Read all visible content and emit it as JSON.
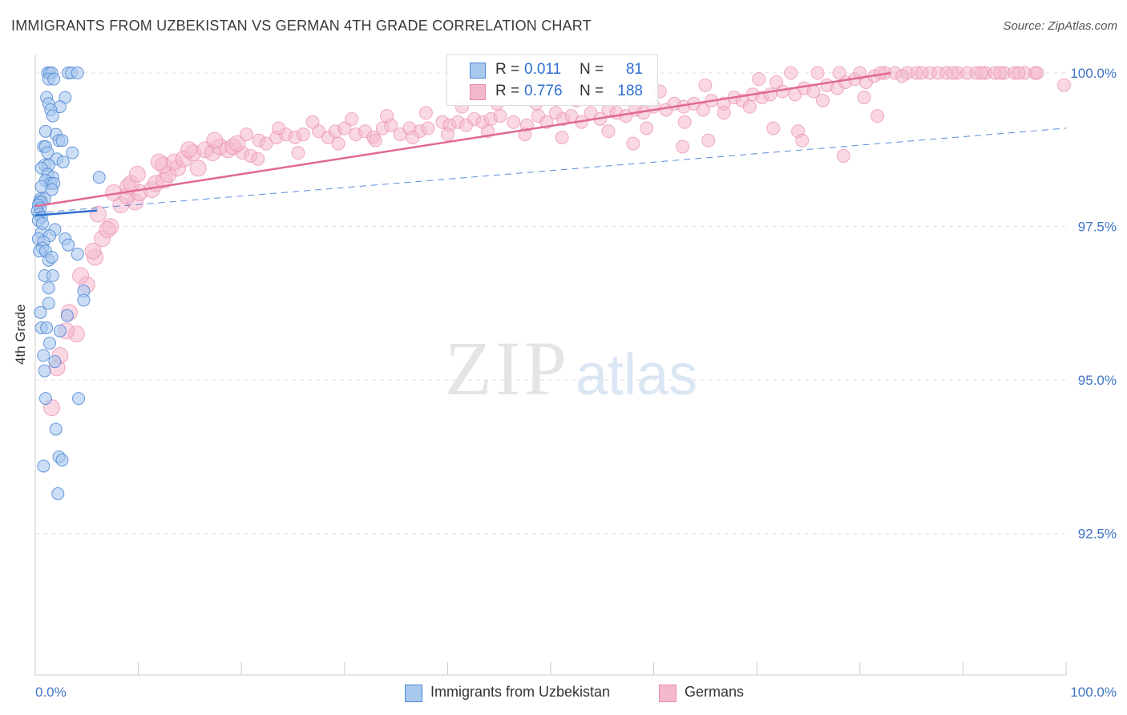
{
  "header": {
    "title": "IMMIGRANTS FROM UZBEKISTAN VS GERMAN 4TH GRADE CORRELATION CHART",
    "source": "Source: ZipAtlas.com"
  },
  "watermark": {
    "zip": "ZIP",
    "atlas": "atlas"
  },
  "legend": {
    "uzbek": {
      "r_label": "R =",
      "r_value": "0.011",
      "n_label": "N =",
      "n_value": "81"
    },
    "german": {
      "r_label": "R =",
      "r_value": "0.776",
      "n_label": "N =",
      "n_value": "188"
    }
  },
  "colors": {
    "uzbek_fill": "#a9c8ee",
    "uzbek_stroke": "#4f86d3",
    "uzbek_line": "#2f6fcf",
    "german_fill": "#f4b8cd",
    "german_stroke": "#e98bab",
    "german_line": "#e06a93",
    "tick_label": "#3f74c6",
    "grid": "#dddddd"
  },
  "chart_data": {
    "type": "scatter",
    "title": "IMMIGRANTS FROM UZBEKISTAN VS GERMAN 4TH GRADE CORRELATION CHART",
    "xlabel": "",
    "ylabel": "4th Grade",
    "xlim": [
      0,
      100
    ],
    "ylim": [
      90.2,
      100.3
    ],
    "x_tick_labels": [
      "0.0%",
      "100.0%"
    ],
    "y_ticks": [
      92.5,
      95.0,
      97.5,
      100.0
    ],
    "y_tick_labels": [
      "92.5%",
      "95.0%",
      "97.5%",
      "100.0%"
    ],
    "legend_position": "bottom-center",
    "series": [
      {
        "name": "Immigrants from Uzbekistan",
        "R": 0.011,
        "N": 81,
        "trend": {
          "x": [
            0,
            6
          ],
          "y": [
            97.68,
            97.76
          ],
          "style": "solid"
        },
        "trend_extended": {
          "x": [
            0,
            100
          ],
          "y": [
            97.72,
            99.1
          ],
          "style": "dashed"
        },
        "points": [
          [
            1.2,
            100
          ],
          [
            1.4,
            100
          ],
          [
            1.6,
            100
          ],
          [
            3.2,
            100
          ],
          [
            3.5,
            100
          ],
          [
            4.1,
            100
          ],
          [
            1.3,
            99.9
          ],
          [
            1.8,
            99.9
          ],
          [
            1.1,
            99.6
          ],
          [
            2.9,
            99.6
          ],
          [
            1.3,
            99.5
          ],
          [
            2.4,
            99.45
          ],
          [
            1.5,
            99.4
          ],
          [
            1.7,
            99.3
          ],
          [
            2.0,
            99.0
          ],
          [
            2.3,
            98.9
          ],
          [
            2.6,
            98.9
          ],
          [
            0.8,
            98.8
          ],
          [
            1.0,
            98.8
          ],
          [
            1.2,
            98.7
          ],
          [
            3.6,
            98.7
          ],
          [
            2.1,
            98.6
          ],
          [
            0.9,
            98.5
          ],
          [
            1.3,
            98.5
          ],
          [
            0.6,
            98.45
          ],
          [
            1.2,
            98.35
          ],
          [
            1.7,
            98.3
          ],
          [
            6.2,
            98.3
          ],
          [
            1.0,
            98.25
          ],
          [
            1.5,
            98.2
          ],
          [
            1.8,
            98.2
          ],
          [
            0.6,
            98.15
          ],
          [
            1.6,
            98.1
          ],
          [
            0.5,
            97.95
          ],
          [
            0.9,
            97.95
          ],
          [
            0.4,
            97.9
          ],
          [
            0.6,
            97.9
          ],
          [
            0.3,
            97.85
          ],
          [
            0.5,
            97.8
          ],
          [
            0.2,
            97.75
          ],
          [
            0.4,
            97.7
          ],
          [
            0.6,
            97.65
          ],
          [
            0.3,
            97.6
          ],
          [
            1.9,
            97.45
          ],
          [
            0.6,
            97.4
          ],
          [
            1.4,
            97.35
          ],
          [
            2.9,
            97.3
          ],
          [
            0.3,
            97.3
          ],
          [
            0.8,
            97.25
          ],
          [
            3.2,
            97.2
          ],
          [
            0.7,
            97.15
          ],
          [
            0.4,
            97.1
          ],
          [
            1.0,
            97.1
          ],
          [
            4.1,
            97.05
          ],
          [
            1.3,
            96.95
          ],
          [
            0.9,
            96.7
          ],
          [
            1.7,
            96.7
          ],
          [
            1.3,
            96.5
          ],
          [
            4.7,
            96.45
          ],
          [
            4.7,
            96.3
          ],
          [
            1.3,
            96.25
          ],
          [
            3.1,
            96.05
          ],
          [
            0.6,
            95.85
          ],
          [
            1.1,
            95.85
          ],
          [
            2.4,
            95.8
          ],
          [
            0.8,
            95.4
          ],
          [
            1.9,
            95.3
          ],
          [
            0.9,
            95.15
          ],
          [
            4.2,
            94.7
          ],
          [
            1.0,
            94.7
          ],
          [
            2.3,
            93.75
          ],
          [
            2.6,
            93.7
          ],
          [
            0.8,
            93.6
          ],
          [
            2.2,
            93.15
          ],
          [
            1.0,
            99.05
          ],
          [
            2.7,
            98.55
          ],
          [
            0.7,
            97.55
          ],
          [
            1.6,
            97.0
          ],
          [
            0.5,
            96.1
          ],
          [
            1.4,
            95.6
          ],
          [
            2.0,
            94.2
          ]
        ]
      },
      {
        "name": "Germans",
        "R": 0.776,
        "N": 188,
        "trend": {
          "x": [
            0,
            83
          ],
          "y": [
            97.83,
            100.0
          ],
          "style": "solid"
        },
        "points": [
          [
            1.6,
            94.55
          ],
          [
            2.1,
            95.2
          ],
          [
            2.4,
            95.4
          ],
          [
            4.0,
            95.75
          ],
          [
            3.0,
            95.8
          ],
          [
            3.3,
            96.1
          ],
          [
            5.0,
            96.55
          ],
          [
            4.4,
            96.7
          ],
          [
            5.8,
            97.0
          ],
          [
            5.6,
            97.1
          ],
          [
            6.5,
            97.3
          ],
          [
            7.3,
            97.5
          ],
          [
            7.0,
            97.45
          ],
          [
            8.3,
            97.85
          ],
          [
            9.7,
            97.9
          ],
          [
            8.9,
            98.0
          ],
          [
            10.1,
            98.05
          ],
          [
            9.0,
            98.15
          ],
          [
            11.3,
            98.1
          ],
          [
            11.7,
            98.2
          ],
          [
            12.5,
            98.25
          ],
          [
            9.3,
            98.2
          ],
          [
            12.9,
            98.35
          ],
          [
            13.8,
            98.45
          ],
          [
            12.4,
            98.5
          ],
          [
            13.5,
            98.55
          ],
          [
            15.8,
            98.45
          ],
          [
            14.4,
            98.6
          ],
          [
            15.3,
            98.7
          ],
          [
            16.5,
            98.75
          ],
          [
            17.2,
            98.7
          ],
          [
            17.9,
            98.8
          ],
          [
            18.7,
            98.75
          ],
          [
            19.2,
            98.8
          ],
          [
            20.1,
            98.7
          ],
          [
            20.9,
            98.65
          ],
          [
            19.6,
            98.85
          ],
          [
            21.7,
            98.9
          ],
          [
            22.4,
            98.85
          ],
          [
            23.4,
            98.95
          ],
          [
            24.3,
            99.0
          ],
          [
            25.2,
            98.95
          ],
          [
            26.0,
            99.0
          ],
          [
            27.5,
            99.05
          ],
          [
            28.4,
            98.95
          ],
          [
            29.1,
            99.05
          ],
          [
            30.0,
            99.1
          ],
          [
            31.1,
            99.0
          ],
          [
            32.0,
            99.05
          ],
          [
            32.8,
            98.95
          ],
          [
            33.7,
            99.1
          ],
          [
            34.5,
            99.15
          ],
          [
            35.4,
            99.0
          ],
          [
            36.3,
            99.1
          ],
          [
            37.3,
            99.05
          ],
          [
            38.1,
            99.1
          ],
          [
            39.5,
            99.2
          ],
          [
            40.2,
            99.15
          ],
          [
            41.0,
            99.2
          ],
          [
            41.8,
            99.15
          ],
          [
            42.6,
            99.25
          ],
          [
            43.4,
            99.2
          ],
          [
            44.2,
            99.25
          ],
          [
            45.1,
            99.3
          ],
          [
            46.4,
            99.2
          ],
          [
            47.7,
            99.15
          ],
          [
            48.8,
            99.3
          ],
          [
            49.6,
            99.2
          ],
          [
            50.5,
            99.35
          ],
          [
            51.2,
            99.25
          ],
          [
            52.0,
            99.3
          ],
          [
            53.0,
            99.2
          ],
          [
            53.9,
            99.35
          ],
          [
            54.8,
            99.25
          ],
          [
            55.6,
            99.4
          ],
          [
            56.4,
            99.35
          ],
          [
            57.3,
            99.3
          ],
          [
            58.2,
            99.4
          ],
          [
            59.0,
            99.35
          ],
          [
            60.0,
            99.45
          ],
          [
            61.2,
            99.4
          ],
          [
            62.0,
            99.5
          ],
          [
            62.9,
            99.45
          ],
          [
            63.9,
            99.5
          ],
          [
            64.8,
            99.4
          ],
          [
            65.6,
            99.55
          ],
          [
            66.8,
            99.5
          ],
          [
            67.8,
            99.6
          ],
          [
            68.6,
            99.55
          ],
          [
            69.6,
            99.65
          ],
          [
            70.5,
            99.6
          ],
          [
            71.3,
            99.65
          ],
          [
            72.5,
            99.7
          ],
          [
            73.7,
            99.65
          ],
          [
            74.6,
            99.75
          ],
          [
            75.5,
            99.7
          ],
          [
            76.8,
            99.8
          ],
          [
            77.8,
            99.75
          ],
          [
            78.6,
            99.85
          ],
          [
            79.5,
            99.9
          ],
          [
            80.6,
            99.85
          ],
          [
            81.4,
            99.95
          ],
          [
            82.4,
            100.0
          ],
          [
            83.4,
            100.0
          ],
          [
            84.6,
            100.0
          ],
          [
            85.5,
            100.0
          ],
          [
            86.8,
            100.0
          ],
          [
            87.6,
            100.0
          ],
          [
            88.4,
            100.0
          ],
          [
            89.5,
            100.0
          ],
          [
            90.4,
            100.0
          ],
          [
            91.3,
            100.0
          ],
          [
            92.2,
            100.0
          ],
          [
            93.1,
            100.0
          ],
          [
            94.0,
            100.0
          ],
          [
            95.0,
            100.0
          ],
          [
            96.0,
            100.0
          ],
          [
            97.0,
            100.0
          ],
          [
            84.1,
            99.95
          ],
          [
            73.3,
            100.0
          ],
          [
            75.9,
            100.0
          ],
          [
            78.0,
            100.0
          ],
          [
            80.0,
            100.0
          ],
          [
            82.0,
            100.0
          ],
          [
            86.0,
            100.0
          ],
          [
            89.0,
            100.0
          ],
          [
            91.8,
            100.0
          ],
          [
            93.6,
            100.0
          ],
          [
            95.4,
            100.0
          ],
          [
            97.2,
            100.0
          ],
          [
            99.8,
            99.8
          ],
          [
            70.2,
            99.9
          ],
          [
            71.9,
            99.85
          ],
          [
            65.0,
            99.8
          ],
          [
            60.6,
            99.7
          ],
          [
            56.8,
            99.6
          ],
          [
            52.5,
            99.55
          ],
          [
            48.6,
            99.5
          ],
          [
            44.8,
            99.5
          ],
          [
            41.4,
            99.45
          ],
          [
            37.9,
            99.35
          ],
          [
            34.1,
            99.3
          ],
          [
            30.7,
            99.25
          ],
          [
            26.9,
            99.2
          ],
          [
            23.6,
            99.1
          ],
          [
            20.5,
            99.0
          ],
          [
            17.4,
            98.9
          ],
          [
            14.9,
            98.75
          ],
          [
            12.0,
            98.55
          ],
          [
            9.9,
            98.35
          ],
          [
            7.6,
            98.05
          ],
          [
            6.1,
            97.7
          ],
          [
            58.0,
            98.85
          ],
          [
            62.8,
            98.8
          ],
          [
            65.3,
            98.9
          ],
          [
            71.6,
            99.1
          ],
          [
            74.0,
            99.05
          ],
          [
            74.4,
            98.9
          ],
          [
            78.4,
            98.65
          ],
          [
            81.7,
            99.3
          ],
          [
            80.4,
            99.6
          ],
          [
            76.4,
            99.55
          ],
          [
            69.3,
            99.45
          ],
          [
            66.8,
            99.35
          ],
          [
            63.0,
            99.2
          ],
          [
            59.3,
            99.1
          ],
          [
            55.6,
            99.05
          ],
          [
            51.1,
            98.95
          ],
          [
            47.5,
            99.0
          ],
          [
            43.9,
            99.05
          ],
          [
            40.0,
            99.0
          ],
          [
            36.6,
            98.95
          ],
          [
            33.0,
            98.9
          ],
          [
            29.4,
            98.85
          ],
          [
            25.5,
            98.7
          ],
          [
            21.6,
            98.6
          ]
        ]
      }
    ]
  }
}
